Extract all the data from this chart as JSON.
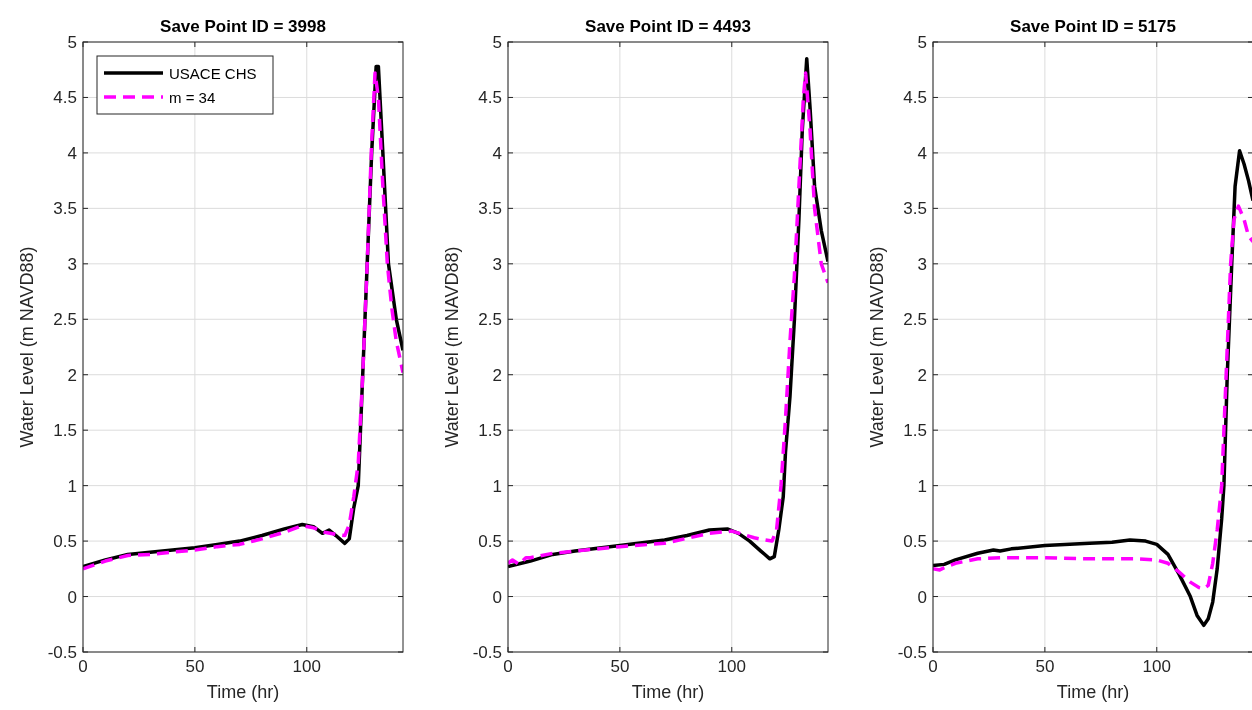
{
  "chart_data": [
    {
      "type": "line",
      "title": "Save Point ID = 3998",
      "xlabel": "Time (hr)",
      "ylabel": "Water Level (m NAVD88)",
      "xlim": [
        0,
        143
      ],
      "xticks": [
        0,
        50,
        100
      ],
      "ylim": [
        -0.5,
        5
      ],
      "yticks": [
        -0.5,
        0,
        0.5,
        1,
        1.5,
        2,
        2.5,
        3,
        3.5,
        4,
        4.5,
        5
      ],
      "grid": true,
      "legend": "top left",
      "series": [
        {
          "name": "USACE CHS",
          "color": "#000000",
          "line_style": "solid",
          "x": [
            0,
            10,
            20,
            30,
            40,
            50,
            60,
            70,
            80,
            90,
            98,
            103,
            107,
            110,
            113,
            117,
            119,
            121,
            123,
            125,
            127,
            129,
            131,
            132,
            134,
            136.5,
            140,
            143
          ],
          "values": [
            0.27,
            0.33,
            0.38,
            0.4,
            0.42,
            0.44,
            0.47,
            0.5,
            0.55,
            0.61,
            0.65,
            0.63,
            0.57,
            0.6,
            0.55,
            0.48,
            0.52,
            0.8,
            1.0,
            2.0,
            3.0,
            4.0,
            4.78,
            4.78,
            4.0,
            3.0,
            2.5,
            2.22
          ]
        },
        {
          "name": "m = 34",
          "color": "#ff00ff",
          "line_style": "dashed",
          "x": [
            0,
            10,
            20,
            30,
            40,
            50,
            60,
            70,
            80,
            90,
            98,
            103,
            108,
            113,
            117,
            119,
            121,
            123,
            125,
            127,
            129,
            130.5,
            132,
            134,
            136,
            138,
            140,
            143
          ],
          "values": [
            0.25,
            0.32,
            0.37,
            0.38,
            0.4,
            0.42,
            0.45,
            0.47,
            0.52,
            0.58,
            0.64,
            0.62,
            0.58,
            0.56,
            0.55,
            0.65,
            0.9,
            1.2,
            2.0,
            3.0,
            4.1,
            4.72,
            4.5,
            3.7,
            3.0,
            2.6,
            2.3,
            2.02
          ]
        }
      ]
    },
    {
      "type": "line",
      "title": "Save Point ID = 4493",
      "xlabel": "Time (hr)",
      "ylabel": "Water Level (m NAVD88)",
      "xlim": [
        0,
        143
      ],
      "xticks": [
        0,
        50,
        100
      ],
      "ylim": [
        -0.5,
        5
      ],
      "yticks": [
        -0.5,
        0,
        0.5,
        1,
        1.5,
        2,
        2.5,
        3,
        3.5,
        4,
        4.5,
        5
      ],
      "grid": true,
      "series": [
        {
          "color": "#000000",
          "line_style": "solid",
          "x": [
            0,
            10,
            20,
            30,
            50,
            70,
            80,
            90,
            98,
            103,
            108,
            113,
            117,
            119,
            121,
            123,
            124,
            126,
            128,
            130,
            131.5,
            133.5,
            135,
            137,
            140,
            143
          ],
          "values": [
            0.27,
            0.32,
            0.38,
            0.41,
            0.46,
            0.51,
            0.55,
            0.6,
            0.61,
            0.57,
            0.5,
            0.41,
            0.34,
            0.36,
            0.6,
            0.9,
            1.3,
            1.8,
            2.5,
            3.4,
            4.2,
            4.85,
            4.4,
            3.7,
            3.3,
            3.02
          ]
        },
        {
          "color": "#ff00ff",
          "line_style": "dashed",
          "x": [
            0,
            2,
            5,
            8,
            10,
            20,
            50,
            70,
            90,
            100,
            110,
            115,
            118,
            120,
            122,
            124,
            126,
            128,
            130,
            132,
            133,
            135,
            137,
            140,
            143
          ],
          "values": [
            0.3,
            0.33,
            0.29,
            0.35,
            0.35,
            0.39,
            0.45,
            0.48,
            0.57,
            0.59,
            0.53,
            0.51,
            0.5,
            0.6,
            1.0,
            1.6,
            2.3,
            2.9,
            3.7,
            4.5,
            4.72,
            4.2,
            3.5,
            3.0,
            2.83
          ]
        }
      ]
    },
    {
      "type": "line",
      "title": "Save Point ID = 5175",
      "xlabel": "Time (hr)",
      "ylabel": "Water Level (m NAVD88)",
      "xlim": [
        0,
        143
      ],
      "xticks": [
        0,
        50,
        100
      ],
      "ylim": [
        -0.5,
        5
      ],
      "yticks": [
        -0.5,
        0,
        0.5,
        1,
        1.5,
        2,
        2.5,
        3,
        3.5,
        4,
        4.5,
        5
      ],
      "grid": true,
      "series": [
        {
          "color": "#000000",
          "line_style": "solid",
          "x": [
            0,
            5,
            10,
            20,
            27,
            30,
            35,
            50,
            70,
            80,
            88,
            95,
            100,
            105,
            110,
            115,
            118,
            121,
            123,
            125,
            127,
            129,
            130,
            131.5,
            133.5,
            135,
            137,
            139,
            141,
            143
          ],
          "values": [
            0.28,
            0.29,
            0.33,
            0.39,
            0.42,
            0.41,
            0.43,
            0.46,
            0.48,
            0.49,
            0.51,
            0.5,
            0.47,
            0.38,
            0.2,
            0.0,
            -0.17,
            -0.26,
            -0.2,
            -0.05,
            0.25,
            0.7,
            1.0,
            2.0,
            3.0,
            3.7,
            4.02,
            3.9,
            3.75,
            3.57
          ]
        },
        {
          "color": "#ff00ff",
          "line_style": "dashed",
          "x": [
            0,
            3,
            5,
            10,
            20,
            30,
            50,
            70,
            90,
            100,
            105,
            110,
            115,
            119,
            121,
            123,
            125,
            127,
            129,
            131,
            133,
            134.5,
            136.5,
            139,
            141,
            143
          ],
          "values": [
            0.25,
            0.24,
            0.26,
            0.3,
            0.34,
            0.35,
            0.35,
            0.34,
            0.34,
            0.33,
            0.3,
            0.22,
            0.13,
            0.08,
            0.07,
            0.1,
            0.3,
            0.6,
            1.0,
            2.0,
            3.0,
            3.4,
            3.52,
            3.4,
            3.25,
            3.2
          ]
        }
      ]
    }
  ]
}
